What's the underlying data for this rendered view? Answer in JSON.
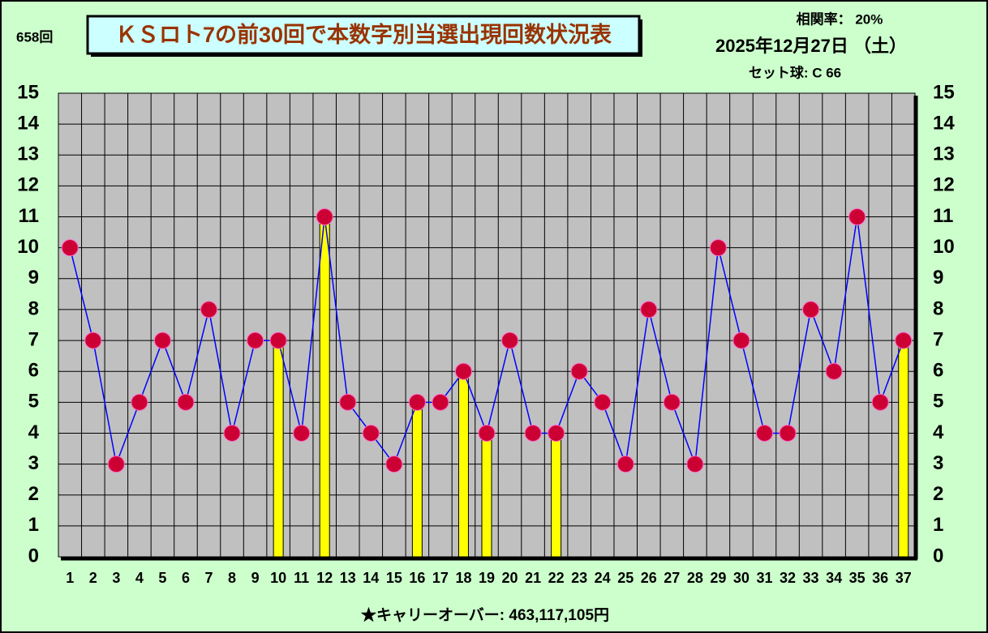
{
  "chart_data": {
    "type": "line",
    "title": "ＫＳロト7の前30回で本数字別当選出現回数状況表",
    "draw_number": "658回",
    "correlation": "相関率：  20%",
    "date": "2025年12月27日 （土）",
    "set_ball": "セット球: C 66",
    "footer": "★キャリーオーバー: 463,117,105円",
    "categories": [
      "1",
      "2",
      "3",
      "4",
      "5",
      "6",
      "7",
      "8",
      "9",
      "10",
      "11",
      "12",
      "13",
      "14",
      "15",
      "16",
      "17",
      "18",
      "19",
      "20",
      "21",
      "22",
      "23",
      "24",
      "25",
      "26",
      "27",
      "28",
      "29",
      "30",
      "31",
      "32",
      "33",
      "34",
      "35",
      "36",
      "37"
    ],
    "series": [
      {
        "type": "line",
        "color": "#0000ff",
        "marker_color": "#cc0033",
        "values": [
          10,
          7,
          3,
          5,
          7,
          5,
          8,
          4,
          7,
          7,
          4,
          11,
          5,
          4,
          3,
          5,
          5,
          6,
          4,
          7,
          4,
          4,
          6,
          5,
          3,
          8,
          5,
          3,
          10,
          7,
          4,
          4,
          8,
          6,
          11,
          5,
          7
        ]
      },
      {
        "type": "bar",
        "color": "#ffff00",
        "values": [
          null,
          null,
          null,
          null,
          null,
          null,
          null,
          null,
          null,
          7,
          null,
          11,
          null,
          null,
          null,
          5,
          null,
          6,
          4,
          null,
          null,
          4,
          null,
          null,
          null,
          null,
          null,
          null,
          null,
          null,
          null,
          null,
          null,
          null,
          null,
          null,
          7
        ]
      }
    ],
    "ylim": [
      0,
      15
    ],
    "yticks": [
      0,
      1,
      2,
      3,
      4,
      5,
      6,
      7,
      8,
      9,
      10,
      11,
      12,
      13,
      14,
      15
    ],
    "grid": true
  }
}
